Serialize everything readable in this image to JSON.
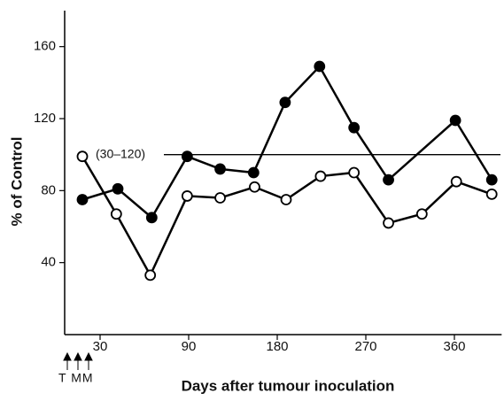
{
  "chart_data": {
    "type": "line",
    "x_label": "Days after tumour inoculation",
    "y_label": "% of Control",
    "xlim": [
      6,
      408
    ],
    "xticks": [
      30,
      90,
      180,
      270,
      360
    ],
    "ylim": [
      0,
      180
    ],
    "yticks": [
      40,
      80,
      120,
      160
    ],
    "reference_line": {
      "value": 100,
      "label": "(30–120)"
    },
    "annotation": "T MM",
    "series": [
      {
        "color": "#000000",
        "marker_fill": "#000000",
        "x": [
          18,
          42,
          65,
          89,
          122,
          156,
          188,
          223,
          258,
          293,
          361,
          398
        ],
        "values": [
          75,
          81,
          65,
          99,
          92,
          90,
          129,
          149,
          115,
          86,
          119,
          86
        ]
      },
      {
        "color": "#000000",
        "marker_fill": "#ffffff",
        "x": [
          18,
          41,
          64,
          89,
          122,
          157,
          189,
          224,
          258,
          293,
          327,
          362,
          398
        ],
        "values": [
          99,
          67,
          33,
          77,
          76,
          82,
          75,
          88,
          90,
          62,
          67,
          85,
          78
        ]
      }
    ]
  }
}
